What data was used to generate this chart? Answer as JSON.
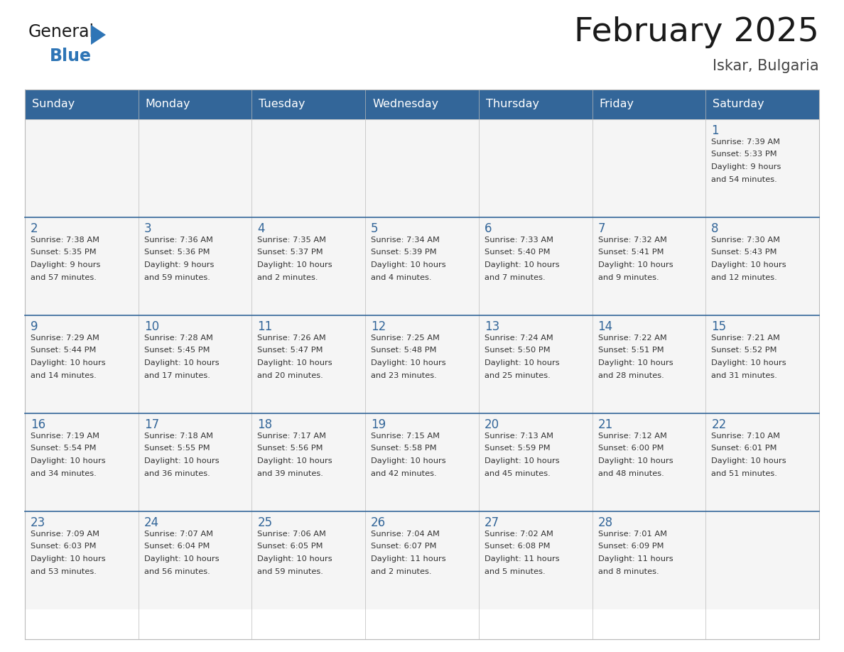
{
  "title": "February 2025",
  "subtitle": "Iskar, Bulgaria",
  "header_bg": "#336699",
  "header_text_color": "#FFFFFF",
  "cell_bg": "#F5F5F5",
  "day_headers": [
    "Sunday",
    "Monday",
    "Tuesday",
    "Wednesday",
    "Thursday",
    "Friday",
    "Saturday"
  ],
  "title_color": "#1a1a1a",
  "subtitle_color": "#444444",
  "day_number_color": "#336699",
  "detail_color": "#333333",
  "grid_color": "#BBBBBB",
  "row_divider_color": "#336699",
  "logo_general_color": "#1a1a1a",
  "logo_blue_color": "#2E75B6",
  "logo_triangle_color": "#2E75B6",
  "weeks": [
    [
      {
        "day": null,
        "sunrise": null,
        "sunset": null,
        "daylight": null
      },
      {
        "day": null,
        "sunrise": null,
        "sunset": null,
        "daylight": null
      },
      {
        "day": null,
        "sunrise": null,
        "sunset": null,
        "daylight": null
      },
      {
        "day": null,
        "sunrise": null,
        "sunset": null,
        "daylight": null
      },
      {
        "day": null,
        "sunrise": null,
        "sunset": null,
        "daylight": null
      },
      {
        "day": null,
        "sunrise": null,
        "sunset": null,
        "daylight": null
      },
      {
        "day": 1,
        "sunrise": "7:39 AM",
        "sunset": "5:33 PM",
        "daylight": "9 hours\nand 54 minutes."
      }
    ],
    [
      {
        "day": 2,
        "sunrise": "7:38 AM",
        "sunset": "5:35 PM",
        "daylight": "9 hours\nand 57 minutes."
      },
      {
        "day": 3,
        "sunrise": "7:36 AM",
        "sunset": "5:36 PM",
        "daylight": "9 hours\nand 59 minutes."
      },
      {
        "day": 4,
        "sunrise": "7:35 AM",
        "sunset": "5:37 PM",
        "daylight": "10 hours\nand 2 minutes."
      },
      {
        "day": 5,
        "sunrise": "7:34 AM",
        "sunset": "5:39 PM",
        "daylight": "10 hours\nand 4 minutes."
      },
      {
        "day": 6,
        "sunrise": "7:33 AM",
        "sunset": "5:40 PM",
        "daylight": "10 hours\nand 7 minutes."
      },
      {
        "day": 7,
        "sunrise": "7:32 AM",
        "sunset": "5:41 PM",
        "daylight": "10 hours\nand 9 minutes."
      },
      {
        "day": 8,
        "sunrise": "7:30 AM",
        "sunset": "5:43 PM",
        "daylight": "10 hours\nand 12 minutes."
      }
    ],
    [
      {
        "day": 9,
        "sunrise": "7:29 AM",
        "sunset": "5:44 PM",
        "daylight": "10 hours\nand 14 minutes."
      },
      {
        "day": 10,
        "sunrise": "7:28 AM",
        "sunset": "5:45 PM",
        "daylight": "10 hours\nand 17 minutes."
      },
      {
        "day": 11,
        "sunrise": "7:26 AM",
        "sunset": "5:47 PM",
        "daylight": "10 hours\nand 20 minutes."
      },
      {
        "day": 12,
        "sunrise": "7:25 AM",
        "sunset": "5:48 PM",
        "daylight": "10 hours\nand 23 minutes."
      },
      {
        "day": 13,
        "sunrise": "7:24 AM",
        "sunset": "5:50 PM",
        "daylight": "10 hours\nand 25 minutes."
      },
      {
        "day": 14,
        "sunrise": "7:22 AM",
        "sunset": "5:51 PM",
        "daylight": "10 hours\nand 28 minutes."
      },
      {
        "day": 15,
        "sunrise": "7:21 AM",
        "sunset": "5:52 PM",
        "daylight": "10 hours\nand 31 minutes."
      }
    ],
    [
      {
        "day": 16,
        "sunrise": "7:19 AM",
        "sunset": "5:54 PM",
        "daylight": "10 hours\nand 34 minutes."
      },
      {
        "day": 17,
        "sunrise": "7:18 AM",
        "sunset": "5:55 PM",
        "daylight": "10 hours\nand 36 minutes."
      },
      {
        "day": 18,
        "sunrise": "7:17 AM",
        "sunset": "5:56 PM",
        "daylight": "10 hours\nand 39 minutes."
      },
      {
        "day": 19,
        "sunrise": "7:15 AM",
        "sunset": "5:58 PM",
        "daylight": "10 hours\nand 42 minutes."
      },
      {
        "day": 20,
        "sunrise": "7:13 AM",
        "sunset": "5:59 PM",
        "daylight": "10 hours\nand 45 minutes."
      },
      {
        "day": 21,
        "sunrise": "7:12 AM",
        "sunset": "6:00 PM",
        "daylight": "10 hours\nand 48 minutes."
      },
      {
        "day": 22,
        "sunrise": "7:10 AM",
        "sunset": "6:01 PM",
        "daylight": "10 hours\nand 51 minutes."
      }
    ],
    [
      {
        "day": 23,
        "sunrise": "7:09 AM",
        "sunset": "6:03 PM",
        "daylight": "10 hours\nand 53 minutes."
      },
      {
        "day": 24,
        "sunrise": "7:07 AM",
        "sunset": "6:04 PM",
        "daylight": "10 hours\nand 56 minutes."
      },
      {
        "day": 25,
        "sunrise": "7:06 AM",
        "sunset": "6:05 PM",
        "daylight": "10 hours\nand 59 minutes."
      },
      {
        "day": 26,
        "sunrise": "7:04 AM",
        "sunset": "6:07 PM",
        "daylight": "11 hours\nand 2 minutes."
      },
      {
        "day": 27,
        "sunrise": "7:02 AM",
        "sunset": "6:08 PM",
        "daylight": "11 hours\nand 5 minutes."
      },
      {
        "day": 28,
        "sunrise": "7:01 AM",
        "sunset": "6:09 PM",
        "daylight": "11 hours\nand 8 minutes."
      },
      {
        "day": null,
        "sunrise": null,
        "sunset": null,
        "daylight": null
      }
    ]
  ]
}
